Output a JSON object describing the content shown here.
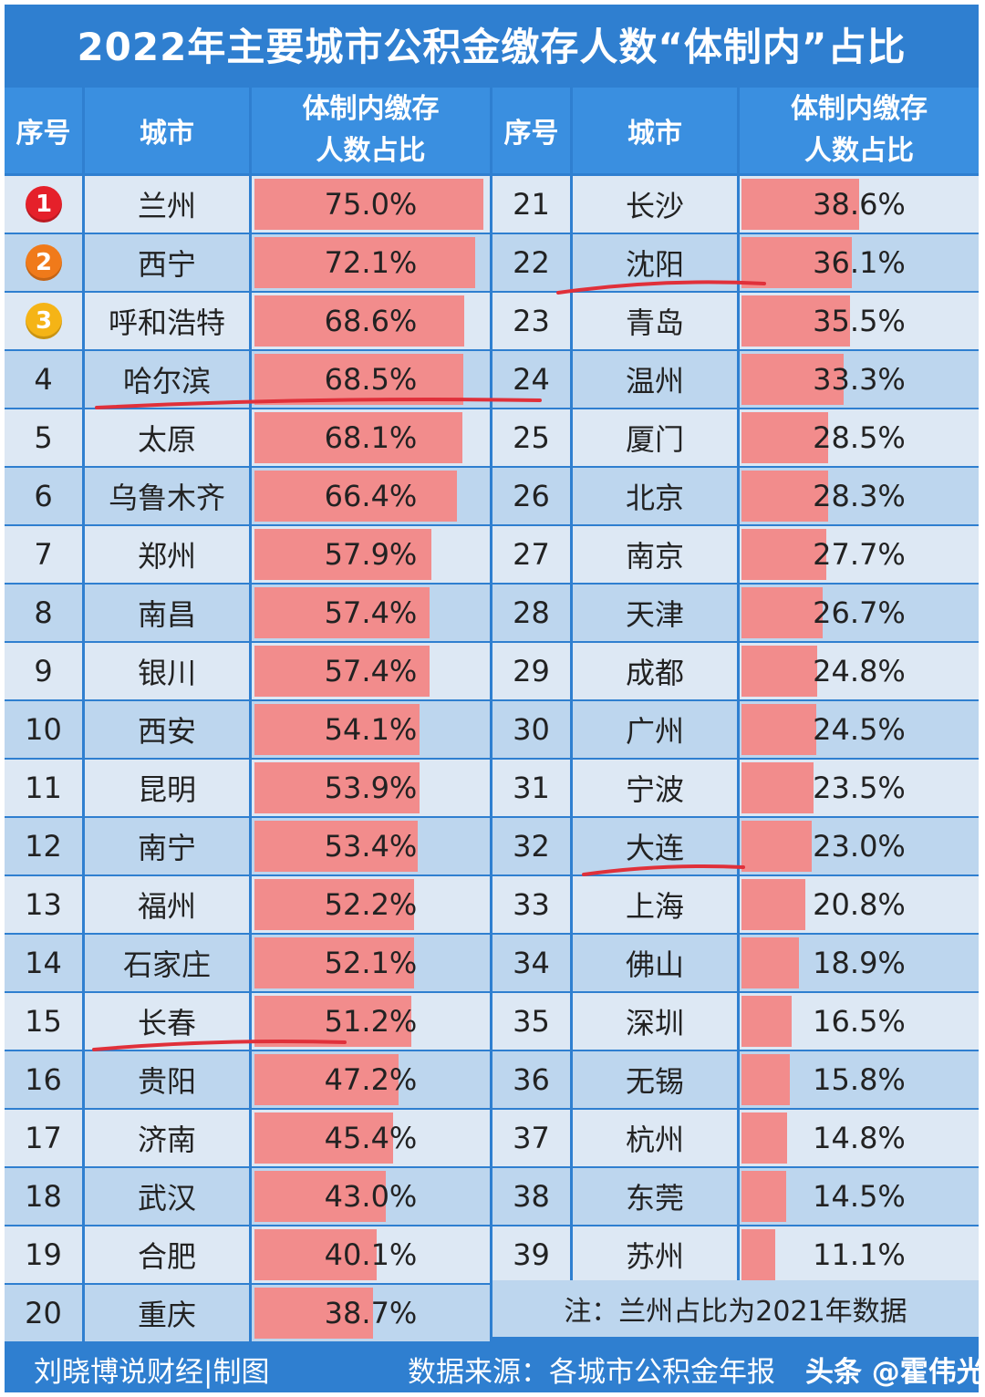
{
  "title": "2022年主要城市公积金缴存人数“体制内”占比",
  "headers": {
    "rank": "序号",
    "city": "城市",
    "share_line1": "体制内缴存",
    "share_line2": "人数占比"
  },
  "colors": {
    "frame": "#2f7fd0",
    "header": "#3a8fe0",
    "row_light": "#dde8f4",
    "row_dark": "#bdd6ee",
    "bar": "#f28c8c",
    "underline": "#e0303a",
    "medal_1": "#e5202a",
    "medal_2": "#f07a1a",
    "medal_3": "#f5b416"
  },
  "chart_data": {
    "type": "table",
    "title": "2022年主要城市公积金缴存人数“体制内”占比",
    "columns": [
      "序号",
      "城市",
      "体制内缴存人数占比"
    ],
    "value_max": 100,
    "rows": [
      {
        "rank": "1",
        "city": "兰州",
        "value": 75.0,
        "label": "75.0%"
      },
      {
        "rank": "2",
        "city": "西宁",
        "value": 72.1,
        "label": "72.1%"
      },
      {
        "rank": "3",
        "city": "呼和浩特",
        "value": 68.6,
        "label": "68.6%"
      },
      {
        "rank": "4",
        "city": "哈尔滨",
        "value": 68.5,
        "label": "68.5%"
      },
      {
        "rank": "5",
        "city": "太原",
        "value": 68.1,
        "label": "68.1%"
      },
      {
        "rank": "6",
        "city": "乌鲁木齐",
        "value": 66.4,
        "label": "66.4%"
      },
      {
        "rank": "7",
        "city": "郑州",
        "value": 57.9,
        "label": "57.9%"
      },
      {
        "rank": "8",
        "city": "南昌",
        "value": 57.4,
        "label": "57.4%"
      },
      {
        "rank": "9",
        "city": "银川",
        "value": 57.4,
        "label": "57.4%"
      },
      {
        "rank": "10",
        "city": "西安",
        "value": 54.1,
        "label": "54.1%"
      },
      {
        "rank": "11",
        "city": "昆明",
        "value": 53.9,
        "label": "53.9%"
      },
      {
        "rank": "12",
        "city": "南宁",
        "value": 53.4,
        "label": "53.4%"
      },
      {
        "rank": "13",
        "city": "福州",
        "value": 52.2,
        "label": "52.2%"
      },
      {
        "rank": "14",
        "city": "石家庄",
        "value": 52.1,
        "label": "52.1%"
      },
      {
        "rank": "15",
        "city": "长春",
        "value": 51.2,
        "label": "51.2%"
      },
      {
        "rank": "16",
        "city": "贵阳",
        "value": 47.2,
        "label": "47.2%"
      },
      {
        "rank": "17",
        "city": "济南",
        "value": 45.4,
        "label": "45.4%"
      },
      {
        "rank": "18",
        "city": "武汉",
        "value": 43.0,
        "label": "43.0%"
      },
      {
        "rank": "19",
        "city": "合肥",
        "value": 40.1,
        "label": "40.1%"
      },
      {
        "rank": "20",
        "city": "重庆",
        "value": 38.7,
        "label": "38.7%"
      },
      {
        "rank": "21",
        "city": "长沙",
        "value": 38.6,
        "label": "38.6%"
      },
      {
        "rank": "22",
        "city": "沈阳",
        "value": 36.1,
        "label": "36.1%"
      },
      {
        "rank": "23",
        "city": "青岛",
        "value": 35.5,
        "label": "35.5%"
      },
      {
        "rank": "24",
        "city": "温州",
        "value": 33.3,
        "label": "33.3%"
      },
      {
        "rank": "25",
        "city": "厦门",
        "value": 28.5,
        "label": "28.5%"
      },
      {
        "rank": "26",
        "city": "北京",
        "value": 28.3,
        "label": "28.3%"
      },
      {
        "rank": "27",
        "city": "南京",
        "value": 27.7,
        "label": "27.7%"
      },
      {
        "rank": "28",
        "city": "天津",
        "value": 26.7,
        "label": "26.7%"
      },
      {
        "rank": "29",
        "city": "成都",
        "value": 24.8,
        "label": "24.8%"
      },
      {
        "rank": "30",
        "city": "广州",
        "value": 24.5,
        "label": "24.5%"
      },
      {
        "rank": "31",
        "city": "宁波",
        "value": 23.5,
        "label": "23.5%"
      },
      {
        "rank": "32",
        "city": "大连",
        "value": 23.0,
        "label": "23.0%"
      },
      {
        "rank": "33",
        "city": "上海",
        "value": 20.8,
        "label": "20.8%"
      },
      {
        "rank": "34",
        "city": "佛山",
        "value": 18.9,
        "label": "18.9%"
      },
      {
        "rank": "35",
        "city": "深圳",
        "value": 16.5,
        "label": "16.5%"
      },
      {
        "rank": "36",
        "city": "无锡",
        "value": 15.8,
        "label": "15.8%"
      },
      {
        "rank": "37",
        "city": "杭州",
        "value": 14.8,
        "label": "14.8%"
      },
      {
        "rank": "38",
        "city": "东莞",
        "value": 14.5,
        "label": "14.5%"
      },
      {
        "rank": "39",
        "city": "苏州",
        "value": 11.1,
        "label": "11.1%"
      }
    ],
    "medal_ranks": [
      1,
      2,
      3
    ],
    "underlined_cities": [
      "沈阳",
      "哈尔滨",
      "大连",
      "长春"
    ]
  },
  "note": "注：兰州占比为2021年数据",
  "footer": {
    "left": "刘晓博说财经|制图",
    "right": "数据来源：各城市公积金年报",
    "watermark": "头条 @霍伟光"
  }
}
